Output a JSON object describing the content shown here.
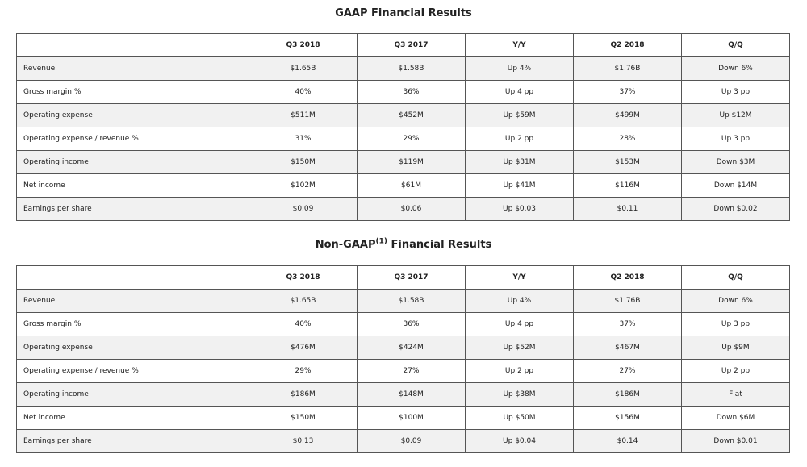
{
  "gaap": {
    "title": "GAAP Financial Results",
    "headers": [
      "",
      "Q3 2018",
      "Q3 2017",
      "Y/Y",
      "Q2 2018",
      "Q/Q"
    ],
    "rows": [
      [
        "Revenue",
        "$1.65B",
        "$1.58B",
        "Up 4%",
        "$1.76B",
        "Down 6%"
      ],
      [
        "Gross margin %",
        "40%",
        "36%",
        "Up 4 pp",
        "37%",
        "Up 3 pp"
      ],
      [
        "Operating expense",
        "$511M",
        "$452M",
        "Up $59M",
        "$499M",
        "Up $12M"
      ],
      [
        "Operating expense / revenue %",
        "31%",
        "29%",
        "Up 2 pp",
        "28%",
        "Up 3 pp"
      ],
      [
        "Operating income",
        "$150M",
        "$119M",
        "Up $31M",
        "$153M",
        "Down $3M"
      ],
      [
        "Net income",
        "$102M",
        "$61M",
        "Up $41M",
        "$116M",
        "Down $14M"
      ],
      [
        "Earnings per share",
        "$0.09",
        "$0.06",
        "Up $0.03",
        "$0.11",
        "Down $0.02"
      ]
    ]
  },
  "nongaap": {
    "title_prefix": "Non-GAAP",
    "title_sup": "(1)",
    "title_suffix": " Financial Results",
    "headers": [
      "",
      "Q3 2018",
      "Q3 2017",
      "Y/Y",
      "Q2 2018",
      "Q/Q"
    ],
    "rows": [
      [
        "Revenue",
        "$1.65B",
        "$1.58B",
        "Up 4%",
        "$1.76B",
        "Down 6%"
      ],
      [
        "Gross margin %",
        "40%",
        "36%",
        "Up 4 pp",
        "37%",
        "Up 3 pp"
      ],
      [
        "Operating expense",
        "$476M",
        "$424M",
        "Up $52M",
        "$467M",
        "Up $9M"
      ],
      [
        "Operating expense / revenue %",
        "29%",
        "27%",
        "Up 2 pp",
        "27%",
        "Up 2 pp"
      ],
      [
        "Operating income",
        "$186M",
        "$148M",
        "Up $38M",
        "$186M",
        "Flat"
      ],
      [
        "Net income",
        "$150M",
        "$100M",
        "Up $50M",
        "$156M",
        "Down $6M"
      ],
      [
        "Earnings per share",
        "$0.13",
        "$0.09",
        "Up $0.04",
        "$0.14",
        "Down $0.01"
      ]
    ]
  }
}
